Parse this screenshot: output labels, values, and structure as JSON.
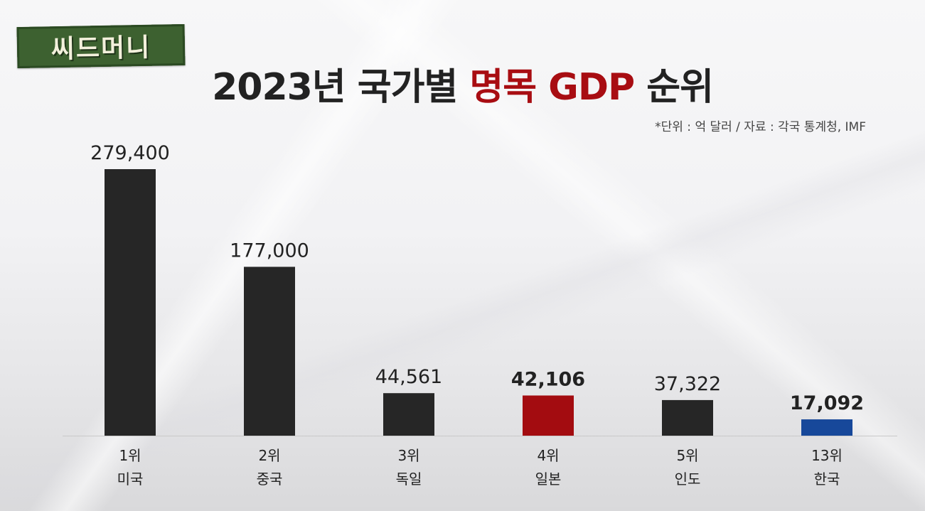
{
  "logo": {
    "text": "씨드머니"
  },
  "title": {
    "prefix": "2023년 국가별 ",
    "highlight": "명목 GDP",
    "suffix": " 순위"
  },
  "source_note": "*단위 : 억 달러 / 자료 : 각국 통계청, IMF",
  "colors": {
    "default_bar": "#262626",
    "japan": "#a30c10",
    "korea": "#17489a",
    "title_highlight": "#a80d12"
  },
  "chart_data": {
    "type": "bar",
    "title": "2023년 국가별 명목 GDP 순위",
    "ylim": [
      0,
      279400
    ],
    "grid": false,
    "bars": [
      {
        "rank": "1위",
        "country": "미국",
        "value": 279400,
        "value_label": "279,400",
        "color": "#262626",
        "bold": false
      },
      {
        "rank": "2위",
        "country": "중국",
        "value": 177000,
        "value_label": "177,000",
        "color": "#262626",
        "bold": false
      },
      {
        "rank": "3위",
        "country": "독일",
        "value": 44561,
        "value_label": "44,561",
        "color": "#262626",
        "bold": false
      },
      {
        "rank": "4위",
        "country": "일본",
        "value": 42106,
        "value_label": "42,106",
        "color": "#a30c10",
        "bold": true
      },
      {
        "rank": "5위",
        "country": "인도",
        "value": 37322,
        "value_label": "37,322",
        "color": "#262626",
        "bold": false
      },
      {
        "rank": "13위",
        "country": "한국",
        "value": 17092,
        "value_label": "17,092",
        "color": "#17489a",
        "bold": true
      }
    ]
  }
}
